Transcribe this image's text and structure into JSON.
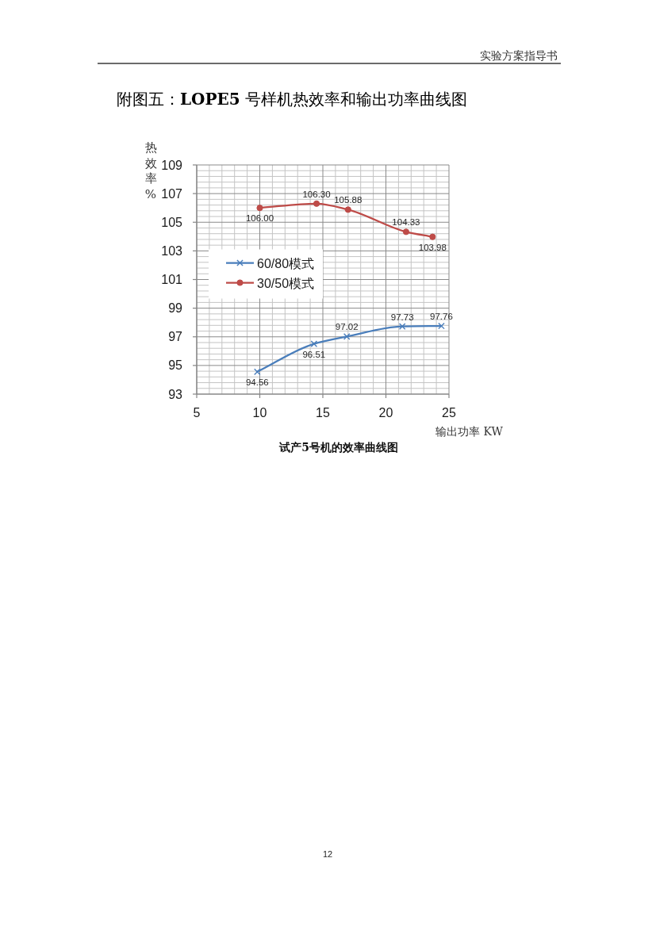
{
  "chart_data": {
    "type": "line",
    "title": "附图五：LOPE5 号样机热效率和输出功率曲线图",
    "subtitle": "试产5号机的效率曲线图",
    "xlabel": "输出功率 KW",
    "ylabel": "热效率%",
    "annotations": [
      "实验方案指导书",
      "12"
    ],
    "xlim": [
      5,
      25
    ],
    "ylim": [
      93,
      109
    ],
    "xticks": [
      5,
      {
        "value": 6,
        "label": null
      },
      {
        "value": 7,
        "label": null
      },
      {
        "value": 8,
        "label": null
      },
      {
        "value": 9,
        "label": null
      },
      10,
      {
        "value": 11,
        "label": null
      },
      {
        "value": 12,
        "label": null
      },
      {
        "value": 13,
        "label": null
      },
      {
        "value": 14,
        "label": null
      },
      15,
      {
        "value": 16,
        "label": null
      },
      {
        "value": 17,
        "label": null
      },
      {
        "value": 18,
        "label": null
      },
      {
        "value": 19,
        "label": null
      },
      20,
      {
        "value": 21,
        "label": null
      },
      {
        "value": 22,
        "label": null
      },
      {
        "value": 23,
        "label": null
      },
      {
        "value": 24,
        "label": null
      },
      25
    ],
    "yticks": [
      93,
      {
        "value": 93.4,
        "label": null
      },
      {
        "value": 93.8,
        "label": null
      },
      {
        "value": 94.2,
        "label": null
      },
      {
        "value": 94.6,
        "label": null
      },
      95,
      {
        "value": 95.4,
        "label": null
      },
      {
        "value": 95.8,
        "label": null
      },
      {
        "value": 96.2,
        "label": null
      },
      {
        "value": 96.6,
        "label": null
      },
      97,
      {
        "value": 97.4,
        "label": null
      },
      {
        "value": 97.8,
        "label": null
      },
      {
        "value": 98.2,
        "label": null
      },
      {
        "value": 98.6,
        "label": null
      },
      99,
      {
        "value": 99.4,
        "label": null
      },
      {
        "value": 99.8,
        "label": null
      },
      {
        "value": 100.2,
        "label": null
      },
      {
        "value": 100.6,
        "label": null
      },
      101,
      {
        "value": 101.4,
        "label": null
      },
      {
        "value": 101.8,
        "label": null
      },
      {
        "value": 102.2,
        "label": null
      },
      {
        "value": 102.6,
        "label": null
      },
      103,
      {
        "value": 103.4,
        "label": null
      },
      {
        "value": 103.8,
        "label": null
      },
      {
        "value": 104.2,
        "label": null
      },
      {
        "value": 104.6,
        "label": null
      },
      105,
      {
        "value": 105.4,
        "label": null
      },
      {
        "value": 105.8,
        "label": null
      },
      {
        "value": 106.2,
        "label": null
      },
      {
        "value": 106.6,
        "label": null
      },
      107,
      {
        "value": 107.4,
        "label": null
      },
      {
        "value": 107.8,
        "label": null
      },
      {
        "value": 108.2,
        "label": null
      },
      {
        "value": 108.6,
        "label": null
      },
      109
    ],
    "grid": true,
    "legend": "left",
    "series": [
      {
        "name": "60/80模式",
        "color": "#4a7ebb",
        "marker": "cross",
        "x": [
          9.8,
          14.3,
          16.9,
          21.3,
          24.4
        ],
        "values": [
          94.56,
          96.51,
          97.02,
          97.73,
          97.76
        ],
        "value_labels": [
          "94.56",
          "96.51",
          "97.02",
          "97.73",
          "97.76"
        ]
      },
      {
        "name": "30/50模式",
        "color": "#be4b48",
        "marker": "circle",
        "x": [
          10.0,
          14.5,
          17.0,
          21.6,
          23.7
        ],
        "values": [
          106.0,
          106.3,
          105.88,
          104.33,
          103.98
        ],
        "value_labels": [
          "106.00",
          "106.30",
          "105.88",
          "104.33",
          "103.98"
        ]
      }
    ]
  }
}
